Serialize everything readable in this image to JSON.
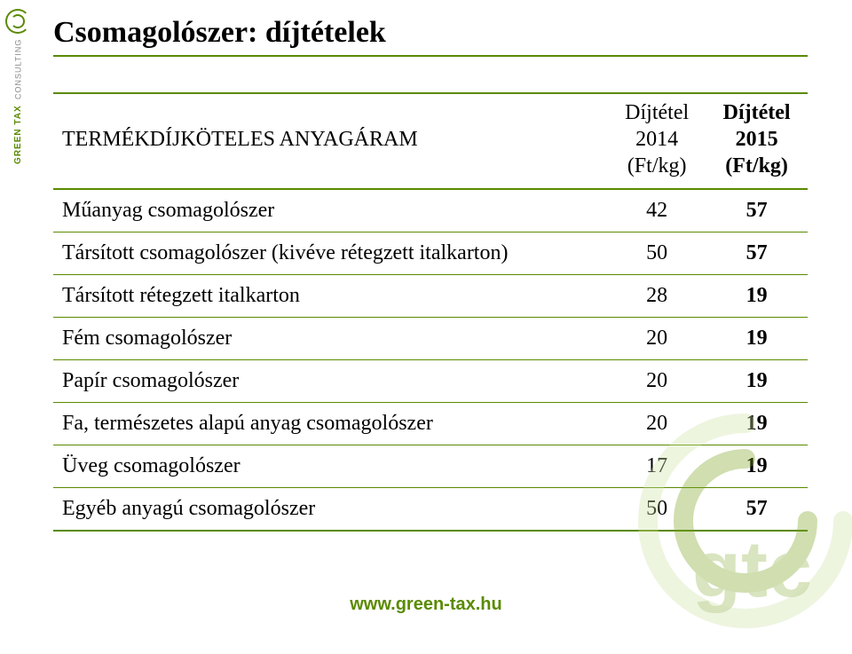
{
  "title": "Csomagolószer: díjtételek",
  "footer_url": "www.green-tax.hu",
  "sidebar": {
    "brand_line1": "GREEN TAX",
    "brand_line2": "CONSULTING"
  },
  "colors": {
    "accent": "#5a8a00",
    "text": "#000000",
    "background": "#ffffff",
    "logo_light": "#cde3a6",
    "logo_dark": "#7aa321"
  },
  "table": {
    "type": "table",
    "columns": [
      {
        "label": "TERMÉKDÍJKÖTELES ANYAGÁRAM",
        "align": "left",
        "bold": false
      },
      {
        "label": "Díjtétel\n2014\n(Ft/kg)",
        "align": "center",
        "bold": false
      },
      {
        "label": "Díjtétel\n2015\n(Ft/kg)",
        "align": "center",
        "bold": true
      }
    ],
    "rows": [
      {
        "name": "Műanyag csomagolószer",
        "v14": 42,
        "v15": 57
      },
      {
        "name": "Társított csomagolószer (kivéve rétegzett italkarton)",
        "v14": 50,
        "v15": 57
      },
      {
        "name": "Társított rétegzett italkarton",
        "v14": 28,
        "v15": 19
      },
      {
        "name": "Fém csomagolószer",
        "v14": 20,
        "v15": 19
      },
      {
        "name": "Papír csomagolószer",
        "v14": 20,
        "v15": 19
      },
      {
        "name": "Fa, természetes alapú anyag csomagolószer",
        "v14": 20,
        "v15": 19
      },
      {
        "name": "Üveg csomagolószer",
        "v14": 17,
        "v15": 19
      },
      {
        "name": "Egyéb anyagú csomagolószer",
        "v14": 50,
        "v15": 57
      }
    ],
    "border_color": "#5a8a00",
    "header_border_width": 2,
    "row_border_width": 1,
    "font_family": "Times New Roman",
    "font_size_pt": 18
  }
}
